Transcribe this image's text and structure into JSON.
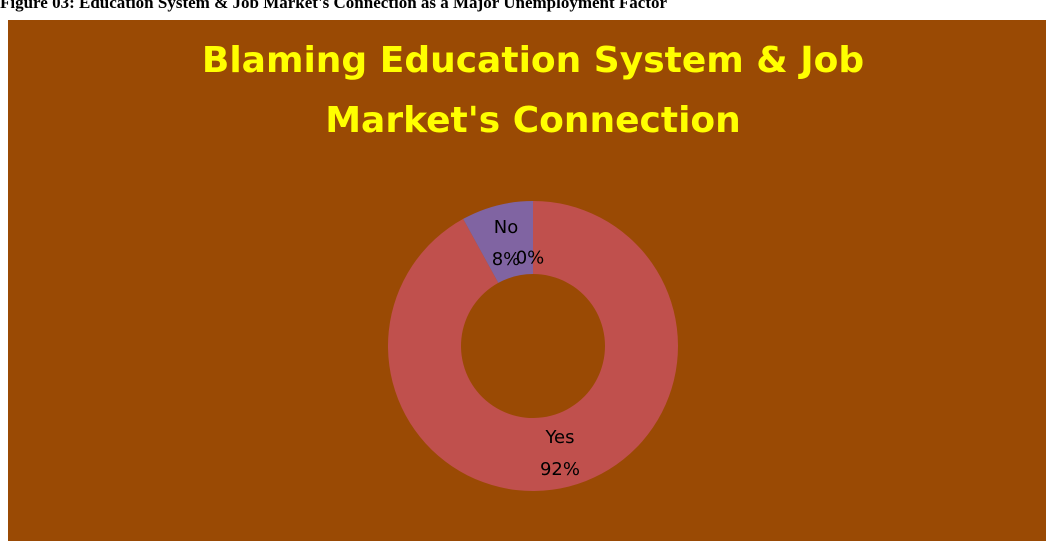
{
  "caption": "Figure 03: Education System & Job Market's Connection as a Major Unemployment Factor",
  "chart_data": {
    "type": "donut",
    "title": "Blaming Education System & Job Market's Connection",
    "categories": [
      "Yes",
      "No",
      null
    ],
    "values": [
      92,
      8,
      0
    ],
    "value_labels": [
      "92%",
      "8%",
      "0%"
    ],
    "colors": [
      "#c0504d",
      "#8064a2",
      "#4bacc6"
    ]
  }
}
